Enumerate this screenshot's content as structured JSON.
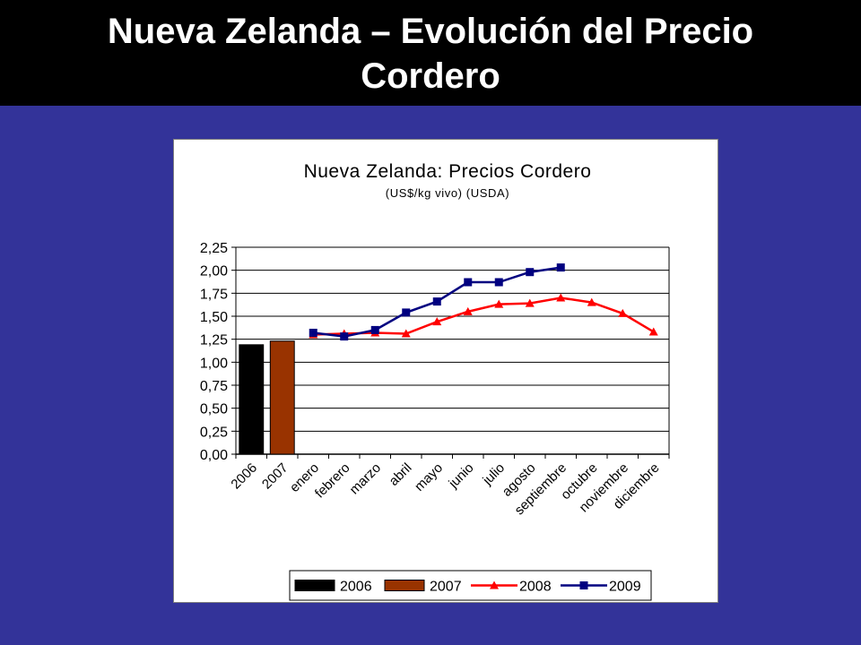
{
  "slide": {
    "title": "Nueva Zelanda – Evolución del Precio Cordero"
  },
  "colors": {
    "background": "#333399",
    "title_bar": "#000000",
    "title_text": "#ffffff",
    "series_2006": "#000000",
    "series_2007": "#993300",
    "series_2008": "#ff0000",
    "series_2009": "#000080"
  },
  "chart_data": {
    "type": "bar",
    "title": "Nueva Zelanda: Precios Cordero",
    "subtitle": "(US$/kg vivo) (USDA)",
    "xlabel": "",
    "ylabel": "",
    "ylim": [
      0,
      2.25
    ],
    "y_step": 0.25,
    "y_ticks": [
      "0,00",
      "0,25",
      "0,50",
      "0,75",
      "1,00",
      "1,25",
      "1,50",
      "1,75",
      "2,00",
      "2,25"
    ],
    "categories": [
      "2006",
      "2007",
      "enero",
      "febrero",
      "marzo",
      "abril",
      "mayo",
      "junio",
      "julio",
      "agosto",
      "septiembre",
      "octubre",
      "noviembre",
      "diciembre"
    ],
    "grid": true,
    "legend_position": "bottom",
    "series": [
      {
        "name": "2006",
        "kind": "bar",
        "color": "#000000",
        "values": [
          1.19,
          null,
          null,
          null,
          null,
          null,
          null,
          null,
          null,
          null,
          null,
          null,
          null,
          null
        ]
      },
      {
        "name": "2007",
        "kind": "bar",
        "color": "#993300",
        "values": [
          null,
          1.23,
          null,
          null,
          null,
          null,
          null,
          null,
          null,
          null,
          null,
          null,
          null,
          null
        ]
      },
      {
        "name": "2008",
        "kind": "line",
        "marker": "triangle",
        "color": "#ff0000",
        "values": [
          null,
          null,
          1.3,
          1.31,
          1.32,
          1.31,
          1.44,
          1.55,
          1.63,
          1.64,
          1.7,
          1.65,
          1.53,
          1.33
        ]
      },
      {
        "name": "2009",
        "kind": "line",
        "marker": "square",
        "color": "#000080",
        "values": [
          null,
          null,
          1.32,
          1.28,
          1.35,
          1.54,
          1.66,
          1.87,
          1.87,
          1.98,
          2.03,
          null,
          null,
          null
        ]
      }
    ]
  }
}
